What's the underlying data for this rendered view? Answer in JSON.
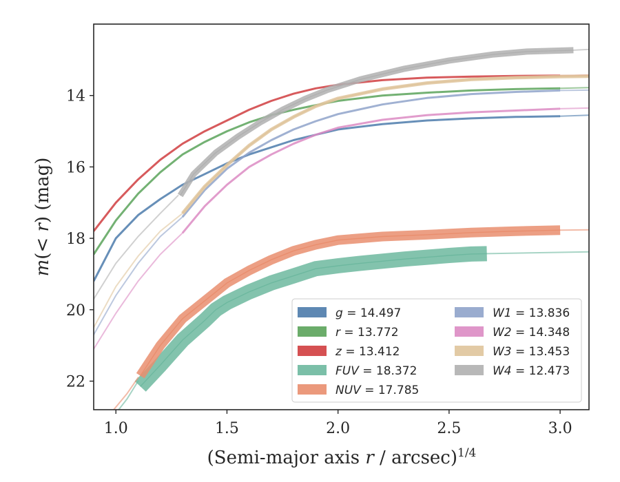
{
  "chart_data": {
    "type": "line",
    "xlabel": "(Semi-major axis r / arcsec)^1/4",
    "xlabel_parts": {
      "pre": "(Semi-major axis ",
      "var": "r",
      "post": " / arcsec)",
      "sup": "1/4"
    },
    "ylabel": "m(< r) (mag)",
    "ylabel_parts": {
      "pre": "m",
      "mid": "(< ",
      "var": "r",
      "post": ") (mag)"
    },
    "xlim": [
      0.9,
      3.13
    ],
    "ylim": [
      22.8,
      12.0
    ],
    "y_inverted": true,
    "xticks": [
      "1.0",
      "1.5",
      "2.0",
      "2.5",
      "3.0"
    ],
    "xtick_values": [
      1.0,
      1.5,
      2.0,
      2.5,
      3.0
    ],
    "yticks": [
      "14",
      "16",
      "18",
      "20",
      "22"
    ],
    "ytick_values": [
      14,
      16,
      18,
      20,
      22
    ],
    "grid": false,
    "legend_position": "lower-right",
    "series": [
      {
        "name": "g",
        "value": "14.497",
        "color": "#4c7bab",
        "band": 3,
        "points": [
          [
            0.9,
            19.2
          ],
          [
            1.0,
            18.0
          ],
          [
            1.1,
            17.35
          ],
          [
            1.2,
            16.9
          ],
          [
            1.3,
            16.5
          ],
          [
            1.4,
            16.2
          ],
          [
            1.5,
            15.9
          ],
          [
            1.6,
            15.65
          ],
          [
            1.7,
            15.45
          ],
          [
            1.8,
            15.25
          ],
          [
            1.9,
            15.1
          ],
          [
            2.0,
            14.95
          ],
          [
            2.2,
            14.8
          ],
          [
            2.4,
            14.7
          ],
          [
            2.6,
            14.64
          ],
          [
            2.8,
            14.6
          ],
          [
            3.0,
            14.58
          ]
        ],
        "faint": [
          [
            3.0,
            14.58
          ],
          [
            3.13,
            14.55
          ]
        ]
      },
      {
        "name": "r",
        "value": "13.772",
        "color": "#5ba35a",
        "band": 3,
        "points": [
          [
            0.9,
            18.45
          ],
          [
            1.0,
            17.5
          ],
          [
            1.1,
            16.75
          ],
          [
            1.2,
            16.15
          ],
          [
            1.3,
            15.65
          ],
          [
            1.4,
            15.3
          ],
          [
            1.5,
            15.0
          ],
          [
            1.6,
            14.75
          ],
          [
            1.7,
            14.55
          ],
          [
            1.8,
            14.4
          ],
          [
            1.9,
            14.27
          ],
          [
            2.0,
            14.15
          ],
          [
            2.2,
            14.0
          ],
          [
            2.4,
            13.92
          ],
          [
            2.6,
            13.86
          ],
          [
            2.8,
            13.82
          ],
          [
            3.0,
            13.8
          ]
        ],
        "faint": [
          [
            3.0,
            13.8
          ],
          [
            3.13,
            13.78
          ]
        ]
      },
      {
        "name": "z",
        "value": "13.412",
        "color": "#d03d3f",
        "band": 3,
        "points": [
          [
            0.9,
            17.8
          ],
          [
            1.0,
            17.0
          ],
          [
            1.1,
            16.35
          ],
          [
            1.2,
            15.8
          ],
          [
            1.3,
            15.35
          ],
          [
            1.4,
            15.0
          ],
          [
            1.5,
            14.7
          ],
          [
            1.6,
            14.4
          ],
          [
            1.7,
            14.15
          ],
          [
            1.8,
            13.95
          ],
          [
            1.9,
            13.8
          ],
          [
            2.0,
            13.7
          ],
          [
            2.2,
            13.57
          ],
          [
            2.4,
            13.5
          ],
          [
            2.6,
            13.47
          ],
          [
            2.8,
            13.45
          ],
          [
            3.0,
            13.44
          ]
        ],
        "faint": [
          [
            3.0,
            13.44
          ],
          [
            3.13,
            13.43
          ]
        ]
      },
      {
        "name": "FUV",
        "value": "18.372",
        "color": "#6db89f",
        "band": 22,
        "faint_pre": [
          [
            0.95,
            23.3
          ],
          [
            1.05,
            22.5
          ],
          [
            1.1,
            22.0
          ]
        ],
        "points": [
          [
            1.11,
            22.15
          ],
          [
            1.2,
            21.55
          ],
          [
            1.3,
            20.85
          ],
          [
            1.4,
            20.3
          ],
          [
            1.45,
            20.0
          ],
          [
            1.5,
            19.8
          ],
          [
            1.6,
            19.5
          ],
          [
            1.7,
            19.25
          ],
          [
            1.8,
            19.05
          ],
          [
            1.9,
            18.85
          ],
          [
            2.0,
            18.77
          ],
          [
            2.1,
            18.7
          ],
          [
            2.2,
            18.64
          ],
          [
            2.3,
            18.58
          ],
          [
            2.4,
            18.53
          ],
          [
            2.5,
            18.48
          ],
          [
            2.6,
            18.44
          ],
          [
            2.67,
            18.43
          ]
        ],
        "faint": [
          [
            2.67,
            18.43
          ],
          [
            3.13,
            18.38
          ]
        ]
      },
      {
        "name": "NUV",
        "value": "17.785",
        "color": "#e98e6e",
        "band": 14,
        "faint_pre": [
          [
            0.95,
            23.1
          ],
          [
            1.05,
            22.35
          ],
          [
            1.1,
            21.9
          ]
        ],
        "points": [
          [
            1.11,
            21.85
          ],
          [
            1.2,
            21.0
          ],
          [
            1.3,
            20.25
          ],
          [
            1.4,
            19.75
          ],
          [
            1.5,
            19.25
          ],
          [
            1.6,
            18.9
          ],
          [
            1.7,
            18.6
          ],
          [
            1.8,
            18.35
          ],
          [
            1.9,
            18.18
          ],
          [
            2.0,
            18.05
          ],
          [
            2.2,
            17.95
          ],
          [
            2.4,
            17.9
          ],
          [
            2.6,
            17.84
          ],
          [
            2.8,
            17.8
          ],
          [
            3.0,
            17.77
          ]
        ],
        "faint": [
          [
            3.0,
            17.77
          ],
          [
            3.13,
            17.76
          ]
        ]
      },
      {
        "name": "W1",
        "value": "13.836",
        "color": "#8fa3ca",
        "band": 3,
        "faint_pre": [
          [
            0.9,
            20.7
          ],
          [
            1.0,
            19.6
          ],
          [
            1.1,
            18.7
          ],
          [
            1.2,
            17.95
          ],
          [
            1.3,
            17.4
          ]
        ],
        "points": [
          [
            1.3,
            17.4
          ],
          [
            1.4,
            16.65
          ],
          [
            1.5,
            16.05
          ],
          [
            1.6,
            15.6
          ],
          [
            1.7,
            15.25
          ],
          [
            1.8,
            14.95
          ],
          [
            1.9,
            14.72
          ],
          [
            2.0,
            14.52
          ],
          [
            2.2,
            14.25
          ],
          [
            2.4,
            14.07
          ],
          [
            2.6,
            13.96
          ],
          [
            2.8,
            13.9
          ],
          [
            3.0,
            13.86
          ]
        ],
        "faint": [
          [
            3.0,
            13.86
          ],
          [
            3.13,
            13.85
          ]
        ]
      },
      {
        "name": "W2",
        "value": "14.348",
        "color": "#dc8bc3",
        "band": 3,
        "faint_pre": [
          [
            0.9,
            21.1
          ],
          [
            1.0,
            20.1
          ],
          [
            1.1,
            19.2
          ],
          [
            1.2,
            18.45
          ],
          [
            1.3,
            17.85
          ]
        ],
        "points": [
          [
            1.3,
            17.85
          ],
          [
            1.4,
            17.1
          ],
          [
            1.5,
            16.5
          ],
          [
            1.6,
            16.0
          ],
          [
            1.7,
            15.65
          ],
          [
            1.8,
            15.35
          ],
          [
            1.9,
            15.1
          ],
          [
            2.0,
            14.9
          ],
          [
            2.2,
            14.68
          ],
          [
            2.4,
            14.55
          ],
          [
            2.6,
            14.47
          ],
          [
            2.8,
            14.42
          ],
          [
            3.0,
            14.37
          ]
        ],
        "faint": [
          [
            3.0,
            14.37
          ],
          [
            3.13,
            14.35
          ]
        ]
      },
      {
        "name": "W3",
        "value": "13.453",
        "color": "#dfc49b",
        "band": 5,
        "faint_pre": [
          [
            0.9,
            20.5
          ],
          [
            1.0,
            19.35
          ],
          [
            1.1,
            18.5
          ],
          [
            1.2,
            17.8
          ],
          [
            1.3,
            17.3
          ]
        ],
        "points": [
          [
            1.3,
            17.3
          ],
          [
            1.4,
            16.55
          ],
          [
            1.5,
            15.95
          ],
          [
            1.6,
            15.4
          ],
          [
            1.7,
            14.95
          ],
          [
            1.8,
            14.6
          ],
          [
            1.9,
            14.3
          ],
          [
            2.0,
            14.08
          ],
          [
            2.2,
            13.82
          ],
          [
            2.4,
            13.65
          ],
          [
            2.6,
            13.55
          ],
          [
            2.8,
            13.5
          ],
          [
            3.0,
            13.47
          ],
          [
            3.13,
            13.46
          ]
        ],
        "faint": []
      },
      {
        "name": "W4",
        "value": "12.473",
        "color": "#b0b0b0",
        "band": 9,
        "faint_pre": [
          [
            0.9,
            19.7
          ],
          [
            1.0,
            18.7
          ],
          [
            1.1,
            17.95
          ],
          [
            1.2,
            17.3
          ],
          [
            1.28,
            16.8
          ]
        ],
        "points": [
          [
            1.29,
            16.8
          ],
          [
            1.35,
            16.2
          ],
          [
            1.45,
            15.6
          ],
          [
            1.55,
            15.15
          ],
          [
            1.65,
            14.75
          ],
          [
            1.75,
            14.4
          ],
          [
            1.85,
            14.1
          ],
          [
            1.95,
            13.85
          ],
          [
            2.1,
            13.55
          ],
          [
            2.3,
            13.25
          ],
          [
            2.5,
            13.02
          ],
          [
            2.7,
            12.85
          ],
          [
            2.85,
            12.77
          ],
          [
            3.06,
            12.73
          ]
        ],
        "faint": [
          [
            3.06,
            12.73
          ],
          [
            3.13,
            12.71
          ]
        ]
      }
    ]
  }
}
